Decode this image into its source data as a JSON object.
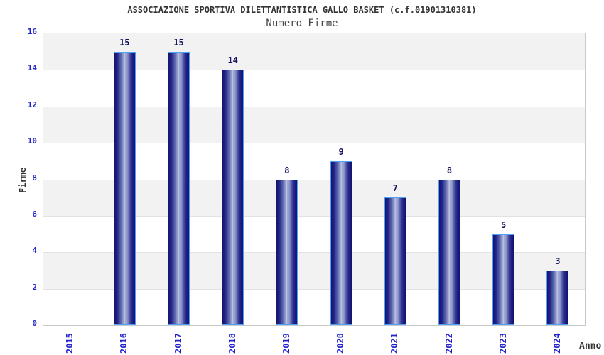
{
  "chart_data": {
    "type": "bar",
    "title": "ASSOCIAZIONE SPORTIVA DILETTANTISTICA GALLO BASKET (c.f.01901310381)",
    "subtitle": "Numero Firme",
    "xlabel": "Anno",
    "ylabel": "Firme",
    "categories": [
      "2015",
      "2016",
      "2017",
      "2018",
      "2019",
      "2020",
      "2021",
      "2022",
      "2023",
      "2024"
    ],
    "values": [
      null,
      15,
      15,
      14,
      8,
      9,
      7,
      8,
      5,
      3
    ],
    "value_labels_shown": [
      "15",
      "15",
      "14",
      "8",
      "9",
      "7",
      "8",
      "5",
      "3"
    ],
    "ylim": [
      0,
      16
    ],
    "yticks": [
      0,
      2,
      4,
      6,
      8,
      10,
      12,
      14,
      16
    ],
    "grid": "alternating-horizontal-bands-every-2-units",
    "legend": "none",
    "bar_style": "vertical-cylinder-gradient",
    "colors": {
      "bar_dark": "#15156f",
      "bar_highlight": "#c3cae6",
      "bar_border": "#4da2f5",
      "axis_tick_label": "#2222cc",
      "value_label": "#13135e",
      "band_gray": "#f2f2f2",
      "band_white": "#ffffff",
      "gridline": "#e2e2e2",
      "plot_border": "#c9c9c9",
      "title_color": "#333333",
      "subtitle_color": "#444444",
      "axis_title_color": "#333333"
    }
  }
}
